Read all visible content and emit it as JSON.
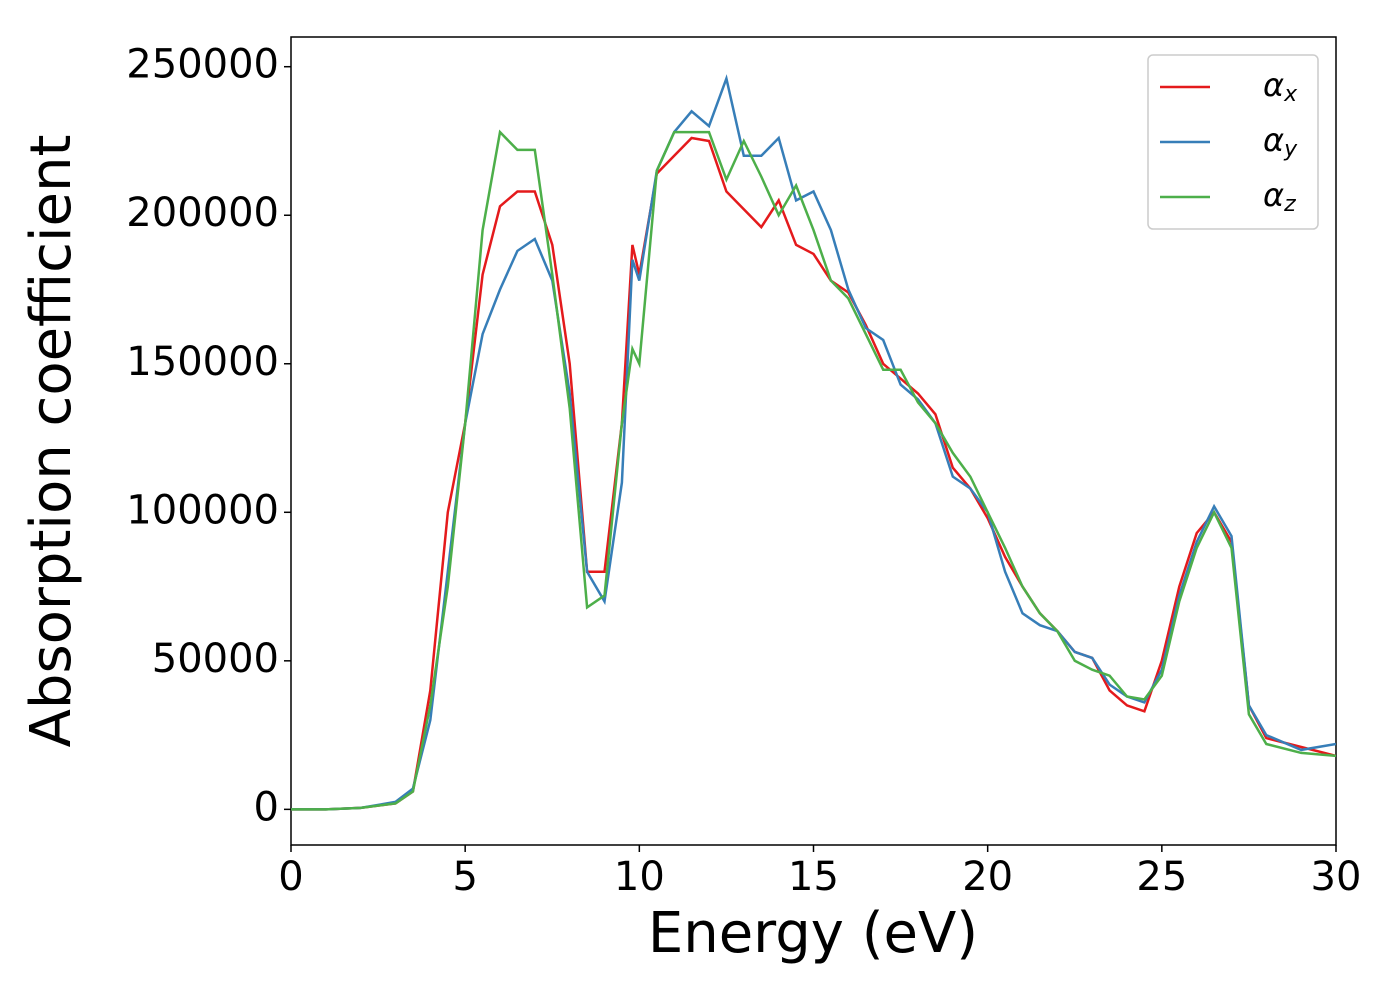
{
  "chart_data": {
    "type": "line",
    "xlabel": "Energy (eV)",
    "ylabel": "Absorption coefficient",
    "x": [
      0,
      1,
      2,
      3,
      3.5,
      4,
      4.5,
      5,
      5.5,
      6,
      6.5,
      7,
      7.5,
      8,
      8.5,
      9,
      9.5,
      9.8,
      10,
      10.5,
      11,
      11.5,
      12,
      12.5,
      13,
      13.5,
      14,
      14.5,
      15,
      15.5,
      16,
      16.5,
      17,
      17.5,
      18,
      18.5,
      19,
      19.5,
      20,
      20.5,
      21,
      21.5,
      22,
      22.5,
      23,
      23.5,
      24,
      24.5,
      25,
      25.5,
      26,
      26.5,
      27,
      27.5,
      28,
      29,
      30
    ],
    "series": [
      {
        "name": "αx",
        "color": "#e41a1c",
        "values": [
          0,
          0,
          500,
          2000,
          6000,
          40000,
          100000,
          130000,
          180000,
          203000,
          208000,
          208000,
          190000,
          150000,
          80000,
          80000,
          130000,
          190000,
          180000,
          214000,
          220000,
          226000,
          225000,
          208000,
          202000,
          196000,
          205000,
          190000,
          187000,
          178000,
          174000,
          163000,
          150000,
          145000,
          140000,
          133000,
          115000,
          108000,
          98000,
          85000,
          75000,
          66000,
          60000,
          53000,
          51000,
          40000,
          35000,
          33000,
          50000,
          75000,
          93000,
          100000,
          90000,
          35000,
          24000,
          21000,
          18000
        ]
      },
      {
        "name": "αy",
        "color": "#377eb8",
        "values": [
          0,
          0,
          500,
          2500,
          7000,
          30000,
          80000,
          130000,
          160000,
          175000,
          188000,
          192000,
          178000,
          140000,
          80000,
          70000,
          110000,
          185000,
          178000,
          215000,
          228000,
          235000,
          230000,
          246000,
          220000,
          220000,
          226000,
          205000,
          208000,
          195000,
          175000,
          162000,
          158000,
          143000,
          138000,
          130000,
          112000,
          108000,
          100000,
          80000,
          66000,
          62000,
          60000,
          53000,
          51000,
          42000,
          38000,
          36000,
          47000,
          72000,
          90000,
          102000,
          92000,
          35000,
          25000,
          20000,
          22000
        ]
      },
      {
        "name": "αz",
        "color": "#4daf4a",
        "values": [
          0,
          0,
          500,
          2000,
          6000,
          35000,
          75000,
          130000,
          195000,
          228000,
          222000,
          222000,
          180000,
          135000,
          68000,
          72000,
          130000,
          155000,
          150000,
          215000,
          228000,
          228000,
          228000,
          212000,
          225000,
          213000,
          200000,
          210000,
          195000,
          178000,
          172000,
          160000,
          148000,
          148000,
          137000,
          130000,
          120000,
          112000,
          100000,
          88000,
          75000,
          66000,
          60000,
          50000,
          47000,
          45000,
          38000,
          37000,
          45000,
          70000,
          88000,
          100000,
          88000,
          32000,
          22000,
          19000,
          18000
        ]
      }
    ],
    "xlim": [
      0,
      30
    ],
    "xticks": [
      0,
      5,
      10,
      15,
      20,
      25,
      30
    ],
    "ylim": [
      -12000,
      260000
    ],
    "yticks": [
      0,
      50000,
      100000,
      150000,
      200000,
      250000
    ],
    "legend": "upper right"
  }
}
